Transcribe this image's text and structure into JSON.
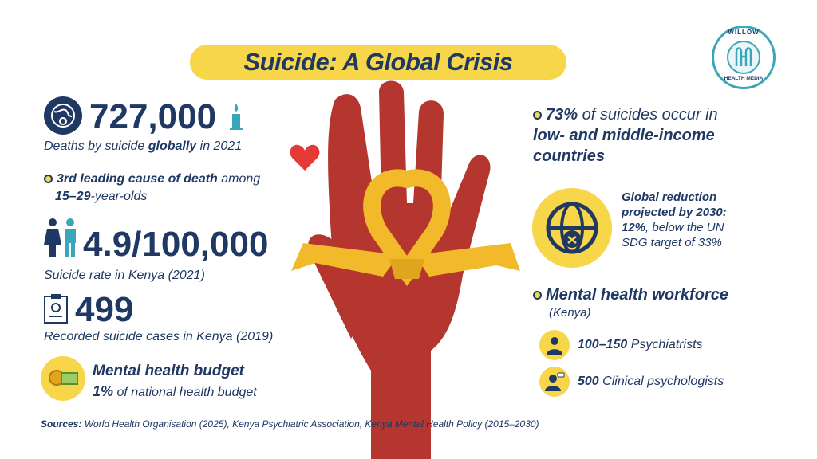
{
  "title": "Suicide: A Global Crisis",
  "logo": {
    "line1": "WILLOW",
    "line2": "HEALTH MEDIA"
  },
  "left": {
    "deaths_value": "727,000",
    "deaths_pre": "Deaths by suicide ",
    "deaths_bold": "globally",
    "deaths_post": " in 2021",
    "rank_bold": "3rd leading cause of death",
    "rank_post": " among",
    "rank_age_bold": "15–29",
    "rank_age_post": "-year-olds",
    "rate_value": "4.9/100,000",
    "rate_label": "Suicide rate in Kenya (2021)",
    "cases_value": "499",
    "cases_label": "Recorded suicide cases in Kenya (2019)",
    "budget_title": "Mental health budget",
    "budget_bold": "1%",
    "budget_post": " of national health budget"
  },
  "right": {
    "lmic_bold": "73%",
    "lmic_line1_post": " of suicides occur in",
    "lmic_line2": "low- and middle-income",
    "lmic_line3": "countries",
    "reduction_line1": "Global reduction",
    "reduction_line2": "projected by 2030:",
    "reduction_bold": "12%",
    "reduction_line3_post": ", below the UN",
    "reduction_line4": "SDG target of 33%",
    "workforce_title": "Mental health workforce",
    "workforce_sub": "(Kenya)",
    "psych_bold": "100–150",
    "psych_post": " Psychiatrists",
    "clin_bold": "500",
    "clin_post": " Clinical psychologists"
  },
  "sources_label": "Sources:",
  "sources_text": " World Health Organisation (2025), Kenya Psychiatric Association, Kenya Mental Health Policy (2015–2030)",
  "colors": {
    "navy": "#1f3864",
    "yellow": "#f7d64a",
    "hand": "#b5362f",
    "ribbon": "#f2b92b",
    "heart": "#e53935"
  },
  "icons": [
    "globe-ribbon-icon",
    "candle-icon",
    "heart-icon",
    "people-icon",
    "clipboard-icon",
    "coins-icon",
    "globe-icon",
    "doctor-icon",
    "psychologist-icon"
  ]
}
